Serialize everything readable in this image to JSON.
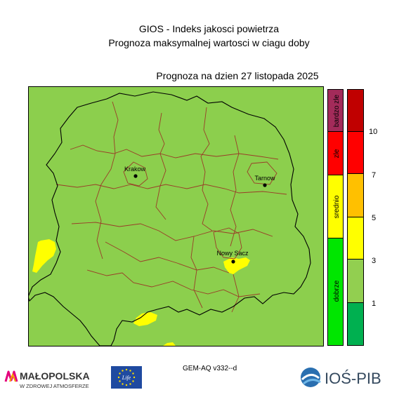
{
  "header": {
    "title_line1": "GIOS - Indeks jakosci powietrza",
    "title_line2": "Prognoza maksymalnej wartosci w ciagu doby",
    "forecast_date": "Prognoza na dzien  27 listopada 2025"
  },
  "map": {
    "cities": [
      {
        "name": "Krakow"
      },
      {
        "name": "Tarnow"
      },
      {
        "name": "Nowy Sacz"
      }
    ],
    "background_color": "#8ccf4d",
    "highlight_color": "#ffff00",
    "outer_border_color": "#000000",
    "inner_border_color": "#9a3c28"
  },
  "legend": {
    "categories": [
      {
        "label": "bardzo zle",
        "color": "#a32b5a"
      },
      {
        "label": "zle",
        "color": "#ff0000"
      },
      {
        "label": "srednio",
        "color": "#ffff00"
      },
      {
        "label": "dobrze",
        "color": "#00e600"
      }
    ],
    "scale_colors": [
      "#c00000",
      "#ff0000",
      "#ffc000",
      "#ffff00",
      "#92cf50",
      "#00b050"
    ],
    "scale_ticks": [
      "10",
      "7",
      "5",
      "3",
      "1"
    ]
  },
  "footer": {
    "model": "GEM-AQ v332--d",
    "logo_malopolska_name": "MAŁOPOLSKA",
    "logo_malopolska_tagline": "W ZDROWEJ ATMOSFERZE",
    "logo_eu_text": "Life",
    "logo_ios_text": "IOŚ-PIB"
  }
}
